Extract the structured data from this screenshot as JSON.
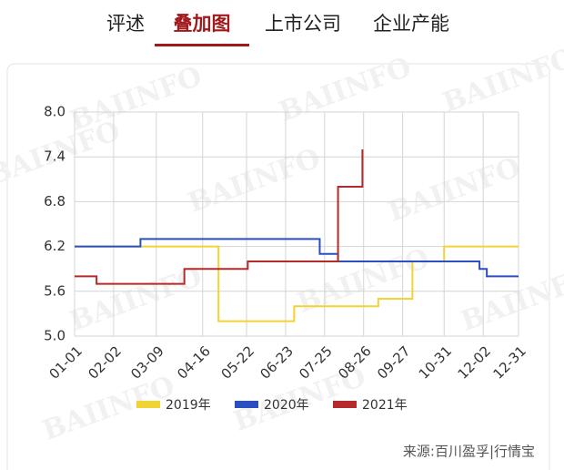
{
  "tabs": [
    "评述",
    "叠加图",
    "上市公司",
    "企业产能"
  ],
  "active_tab": 1,
  "watermark": "BAIINFO",
  "source": "来源:百川盈孚|行情宝",
  "chart_data": {
    "type": "step-line",
    "categories": [
      "01-01",
      "02-02",
      "03-09",
      "04-16",
      "05-22",
      "06-23",
      "07-25",
      "08-26",
      "09-27",
      "10-31",
      "12-02",
      "12-31"
    ],
    "ylim": [
      5.0,
      8.0
    ],
    "yticks": [
      {
        "value": 5.0,
        "label": "5.0"
      },
      5.6,
      6.2,
      6.8,
      7.4,
      {
        "value": 8.0,
        "label": "8.0"
      }
    ],
    "grid": true,
    "legend": "bottom",
    "series": [
      {
        "name": "2019年",
        "color": "#f2d335",
        "x": [
          "01-01",
          "04-29",
          "06-30",
          "09-07",
          "10-05",
          "10-31",
          "12-31"
        ],
        "values": [
          6.2,
          5.2,
          5.4,
          5.5,
          6.0,
          6.2,
          6.2
        ]
      },
      {
        "name": "2020年",
        "color": "#2a4fbf",
        "x": [
          "01-01",
          "02-24",
          "07-21",
          "08-05",
          "11-29",
          "12-05",
          "12-31"
        ],
        "values": [
          6.2,
          6.3,
          6.1,
          6.0,
          5.9,
          5.8,
          5.8
        ]
      },
      {
        "name": "2021年",
        "color": "#b52a2a",
        "x": [
          "01-01",
          "01-19",
          "04-01",
          "05-23",
          "08-05",
          "08-25"
        ],
        "values": [
          5.8,
          5.7,
          5.9,
          6.0,
          7.0,
          7.5
        ]
      }
    ]
  }
}
